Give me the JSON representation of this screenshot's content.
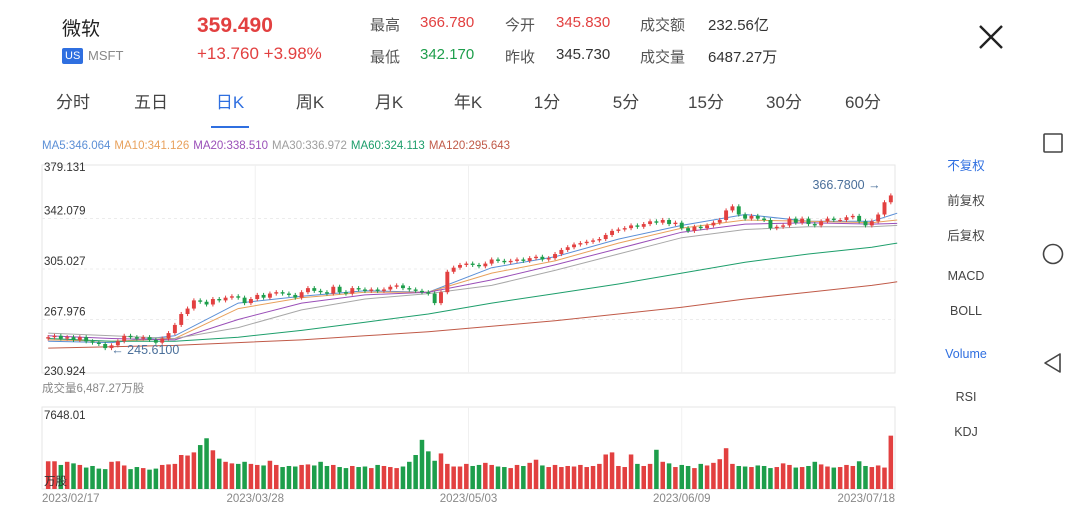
{
  "header": {
    "name": "微软",
    "market_badge": "US",
    "ticker": "MSFT",
    "price": "359.490",
    "change": "+13.760 +3.98%",
    "stats": [
      {
        "label": "最高",
        "value": "366.780",
        "tone": "red"
      },
      {
        "label": "今开",
        "value": "345.830",
        "tone": "red"
      },
      {
        "label": "成交额",
        "value": "232.56亿",
        "tone": "dark"
      },
      {
        "label": "最低",
        "value": "342.170",
        "tone": "green"
      },
      {
        "label": "昨收",
        "value": "345.730",
        "tone": "dark"
      },
      {
        "label": "成交量",
        "value": "6487.27万",
        "tone": "dark"
      }
    ]
  },
  "tabs": [
    {
      "label": "分时"
    },
    {
      "label": "五日"
    },
    {
      "label": "日K"
    },
    {
      "label": "周K"
    },
    {
      "label": "月K"
    },
    {
      "label": "年K"
    },
    {
      "label": "1分"
    },
    {
      "label": "5分"
    },
    {
      "label": "15分"
    },
    {
      "label": "30分"
    },
    {
      "label": "60分"
    }
  ],
  "active_tab": 2,
  "ma_legend": [
    {
      "text": "MA5:346.064",
      "color": "#5b8fd6"
    },
    {
      "text": "MA10:341.126",
      "color": "#e8a15c"
    },
    {
      "text": "MA20:338.510",
      "color": "#9a4fb8"
    },
    {
      "text": "MA30:336.972",
      "color": "#9e9e9e"
    },
    {
      "text": "MA60:324.113",
      "color": "#1d9e6b"
    },
    {
      "text": "MA120:295.643",
      "color": "#c05a48"
    }
  ],
  "side_panel": {
    "adjust": [
      {
        "label": "不复权",
        "active": true
      },
      {
        "label": "前复权",
        "active": false
      },
      {
        "label": "后复权",
        "active": false
      }
    ],
    "indicators": [
      {
        "label": "MACD",
        "active": false
      },
      {
        "label": "BOLL",
        "active": false
      },
      {
        "label": "Volume",
        "active": true
      },
      {
        "label": "RSI",
        "active": false
      },
      {
        "label": "KDJ",
        "active": false
      }
    ]
  },
  "nav_buttons": [
    "square-icon",
    "circle-icon",
    "back-triangle-icon"
  ],
  "chart_data": {
    "type": "candlestick",
    "price_axis": {
      "ticks": [
        "379.131",
        "342.079",
        "305.027",
        "267.976",
        "230.924"
      ],
      "ylim": [
        230.924,
        379.131
      ]
    },
    "annotations": {
      "high_label": "366.7800",
      "low_label": "245.6100",
      "high": 366.78,
      "low": 245.61
    },
    "volume_label": "成交量6,487.27万股",
    "volume_axis": {
      "max_label": "7648.01",
      "unit_label": "万股",
      "max": 7648.01
    },
    "x_labels": [
      "2023/02/17",
      "2023/03/28",
      "2023/05/03",
      "2023/06/09",
      "2023/07/18"
    ],
    "colors": {
      "up": "#e24040",
      "down": "#1d9e4b"
    },
    "closes": [
      255,
      256,
      254,
      255,
      253,
      255,
      252,
      251,
      250,
      247,
      249,
      252,
      256,
      255,
      254,
      255,
      253,
      251,
      254,
      258,
      264,
      272,
      276,
      282,
      281,
      279,
      283,
      282,
      284,
      285,
      284,
      280,
      283,
      286,
      284,
      287,
      288,
      287,
      286,
      284,
      288,
      291,
      289,
      288,
      287,
      292,
      288,
      287,
      291,
      290,
      289,
      290,
      289,
      290,
      292,
      293,
      291,
      290,
      289,
      288,
      287,
      280,
      288,
      303,
      306,
      308,
      309,
      308,
      307,
      309,
      312,
      311,
      310,
      311,
      312,
      311,
      313,
      314,
      312,
      313,
      316,
      319,
      321,
      323,
      324,
      325,
      326,
      327,
      330,
      333,
      334,
      335,
      337,
      336,
      338,
      340,
      339,
      341,
      338,
      339,
      335,
      333,
      336,
      335,
      337,
      339,
      341,
      348,
      351,
      345,
      342,
      344,
      342,
      341,
      335,
      336,
      337,
      342,
      339,
      342,
      338,
      337,
      340,
      342,
      341,
      341,
      343,
      344,
      340,
      337,
      340,
      345,
      354,
      359
    ],
    "volumes": [
      2650,
      2650,
      2300,
      2600,
      2450,
      2300,
      2050,
      2200,
      1950,
      1900,
      2600,
      2650,
      2250,
      1900,
      2100,
      2000,
      1850,
      1950,
      2300,
      2350,
      2400,
      3250,
      3200,
      3500,
      4200,
      4850,
      3700,
      2900,
      2600,
      2450,
      2400,
      2600,
      2400,
      2300,
      2250,
      2700,
      2300,
      2100,
      2200,
      2150,
      2300,
      2350,
      2250,
      2600,
      2200,
      2300,
      2100,
      2000,
      2200,
      2100,
      2150,
      2000,
      2300,
      2200,
      2100,
      2000,
      2150,
      2600,
      3250,
      4700,
      3600,
      2700,
      3400,
      2400,
      2150,
      2150,
      2400,
      2200,
      2300,
      2500,
      2300,
      2150,
      2100,
      2000,
      2300,
      2200,
      2500,
      2800,
      2250,
      2100,
      2300,
      2100,
      2200,
      2150,
      2300,
      2100,
      2200,
      2400,
      3300,
      3500,
      2200,
      2100,
      3300,
      2400,
      2200,
      2400,
      3750,
      2600,
      2450,
      2100,
      2300,
      2200,
      2000,
      2400,
      2250,
      2500,
      2850,
      3900,
      2400,
      2200,
      2150,
      2100,
      2250,
      2200,
      2000,
      2100,
      2450,
      2300,
      2050,
      2100,
      2200,
      2600,
      2350,
      2150,
      2050,
      2100,
      2300,
      2200,
      2650,
      2200,
      2100,
      2250,
      2050,
      5100
    ],
    "ma_values": {
      "ma5": [
        [
          0,
          252
        ],
        [
          10,
          251
        ],
        [
          20,
          256
        ],
        [
          30,
          280
        ],
        [
          40,
          285
        ],
        [
          50,
          289
        ],
        [
          60,
          288
        ],
        [
          70,
          306
        ],
        [
          80,
          314
        ],
        [
          90,
          327
        ],
        [
          100,
          337
        ],
        [
          110,
          345
        ],
        [
          120,
          340
        ],
        [
          130,
          340
        ],
        [
          134,
          346
        ]
      ],
      "ma10": [
        [
          0,
          253
        ],
        [
          10,
          252
        ],
        [
          20,
          254
        ],
        [
          30,
          276
        ],
        [
          40,
          284
        ],
        [
          50,
          288
        ],
        [
          60,
          288
        ],
        [
          70,
          302
        ],
        [
          80,
          311
        ],
        [
          90,
          324
        ],
        [
          100,
          335
        ],
        [
          110,
          341
        ],
        [
          120,
          340
        ],
        [
          130,
          339
        ],
        [
          134,
          341
        ]
      ],
      "ma20": [
        [
          0,
          256
        ],
        [
          10,
          254
        ],
        [
          20,
          253
        ],
        [
          30,
          268
        ],
        [
          40,
          280
        ],
        [
          50,
          286
        ],
        [
          60,
          288
        ],
        [
          70,
          297
        ],
        [
          80,
          308
        ],
        [
          90,
          320
        ],
        [
          100,
          332
        ],
        [
          110,
          338
        ],
        [
          120,
          339
        ],
        [
          130,
          338
        ],
        [
          134,
          338.5
        ]
      ],
      "ma30": [
        [
          0,
          258
        ],
        [
          10,
          256
        ],
        [
          20,
          254
        ],
        [
          30,
          262
        ],
        [
          40,
          275
        ],
        [
          50,
          283
        ],
        [
          60,
          287
        ],
        [
          70,
          293
        ],
        [
          80,
          304
        ],
        [
          90,
          316
        ],
        [
          100,
          328
        ],
        [
          110,
          334
        ],
        [
          120,
          336
        ],
        [
          130,
          336
        ],
        [
          134,
          337
        ]
      ],
      "ma60": [
        [
          0,
          254
        ],
        [
          10,
          252
        ],
        [
          20,
          252
        ],
        [
          30,
          255
        ],
        [
          40,
          260
        ],
        [
          50,
          266
        ],
        [
          60,
          272
        ],
        [
          70,
          280
        ],
        [
          80,
          287
        ],
        [
          90,
          294
        ],
        [
          100,
          302
        ],
        [
          110,
          310
        ],
        [
          120,
          316
        ],
        [
          130,
          321
        ],
        [
          134,
          324
        ]
      ],
      "ma120": [
        [
          0,
          247
        ],
        [
          10,
          248
        ],
        [
          20,
          249
        ],
        [
          30,
          251
        ],
        [
          40,
          253
        ],
        [
          50,
          256
        ],
        [
          60,
          259
        ],
        [
          70,
          263
        ],
        [
          80,
          267
        ],
        [
          90,
          272
        ],
        [
          100,
          277
        ],
        [
          110,
          283
        ],
        [
          120,
          288
        ],
        [
          130,
          293
        ],
        [
          134,
          295.6
        ]
      ]
    }
  }
}
